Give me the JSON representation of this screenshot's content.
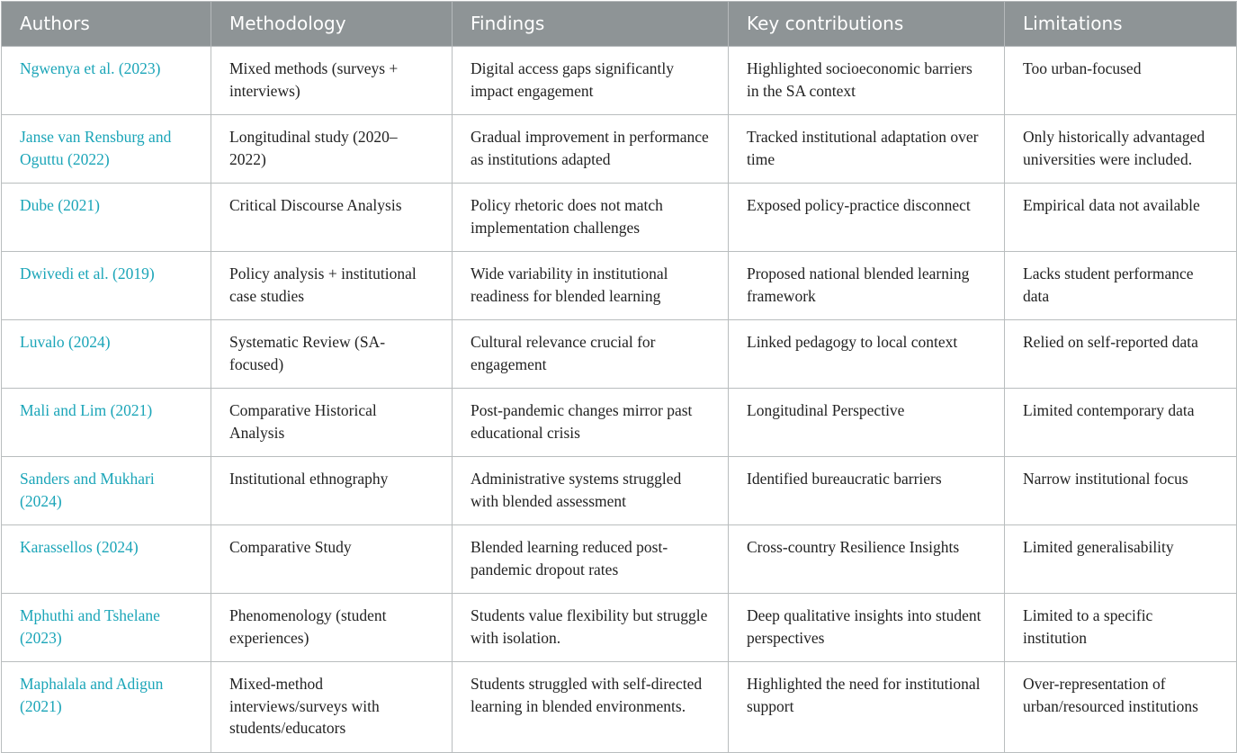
{
  "colors": {
    "header_bg": "#8e9496",
    "link": "#1ba5b8"
  },
  "headers": [
    "Authors",
    "Methodology",
    "Findings",
    "Key contributions",
    "Limitations"
  ],
  "rows": [
    [
      "Ngwenya et al. (2023)",
      "Mixed methods (surveys + interviews)",
      "Digital access gaps significantly impact engagement",
      "Highlighted socioeconomic barriers in the SA context",
      "Too urban-focused"
    ],
    [
      "Janse van Rensburg and Oguttu (2022)",
      "Longitudinal study (2020–2022)",
      "Gradual improvement in performance as institutions adapted",
      "Tracked institutional adaptation over time",
      "Only historically advantaged universities were included."
    ],
    [
      "Dube (2021)",
      "Critical Discourse Analysis",
      "Policy rhetoric does not match implementation challenges",
      "Exposed policy-practice disconnect",
      "Empirical data not available"
    ],
    [
      "Dwivedi et al. (2019)",
      "Policy analysis + institutional case studies",
      "Wide variability in institutional readiness for blended learning",
      "Proposed national blended learning framework",
      "Lacks student performance data"
    ],
    [
      "Luvalo (2024)",
      "Systematic Review (SA-focused)",
      "Cultural relevance crucial for engagement",
      "Linked pedagogy to local context",
      "Relied on self-reported data"
    ],
    [
      "Mali and Lim (2021)",
      "Comparative Historical Analysis",
      "Post-pandemic changes mirror past educational crisis",
      "Longitudinal Perspective",
      "Limited contemporary data"
    ],
    [
      "Sanders and Mukhari (2024)",
      "Institutional ethnography",
      "Administrative systems struggled with blended assessment",
      "Identified bureaucratic barriers",
      "Narrow institutional focus"
    ],
    [
      "Karassellos (2024)",
      "Comparative Study",
      "Blended learning reduced post-pandemic dropout rates",
      "Cross-country Resilience Insights",
      "Limited generalisability"
    ],
    [
      "Mphuthi and Tshelane (2023)",
      "Phenomenology (student experiences)",
      "Students value flexibility but struggle with isolation.",
      "Deep qualitative insights into student perspectives",
      "Limited to a specific institution"
    ],
    [
      "Maphalala and Adigun (2021)",
      "Mixed-method interviews/surveys with students/educators",
      "Students struggled with self-directed learning in blended environments.",
      "Highlighted the need for institutional support",
      "Over-representation of urban/resourced institutions"
    ]
  ]
}
